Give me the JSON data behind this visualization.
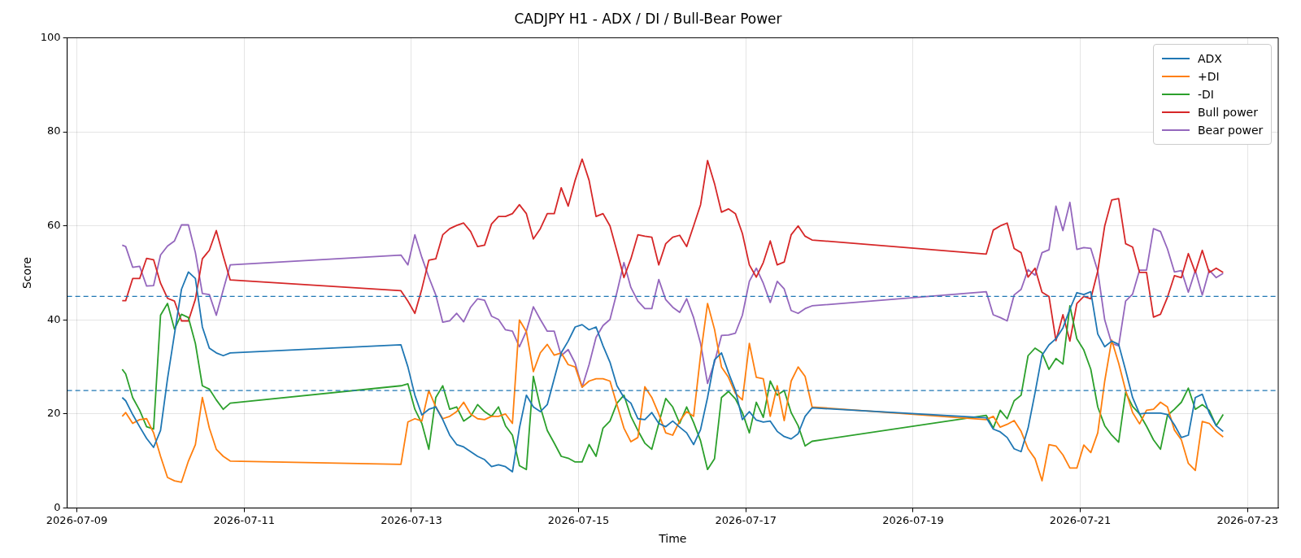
{
  "chart_data": {
    "type": "line",
    "title": "CADJPY H1 - ADX / DI / Bull-Bear Power",
    "xlabel": "Time",
    "ylabel": "Score",
    "x": [
      "2026-07-09T13:00",
      "2026-07-09T14:00",
      "2026-07-09T16:00",
      "2026-07-09T18:00",
      "2026-07-09T20:00",
      "2026-07-09T22:00",
      "2026-07-10T00:00",
      "2026-07-10T02:00",
      "2026-07-10T04:00",
      "2026-07-10T06:00",
      "2026-07-10T08:00",
      "2026-07-10T10:00",
      "2026-07-10T12:00",
      "2026-07-10T14:00",
      "2026-07-10T16:00",
      "2026-07-10T18:00",
      "2026-07-10T20:00",
      "2026-07-12T21:00",
      "2026-07-12T23:00",
      "2026-07-13T01:00",
      "2026-07-13T03:00",
      "2026-07-13T05:00",
      "2026-07-13T07:00",
      "2026-07-13T09:00",
      "2026-07-13T11:00",
      "2026-07-13T13:00",
      "2026-07-13T15:00",
      "2026-07-13T17:00",
      "2026-07-13T19:00",
      "2026-07-13T21:00",
      "2026-07-13T23:00",
      "2026-07-14T01:00",
      "2026-07-14T03:00",
      "2026-07-14T05:00",
      "2026-07-14T07:00",
      "2026-07-14T09:00",
      "2026-07-14T11:00",
      "2026-07-14T13:00",
      "2026-07-14T15:00",
      "2026-07-14T17:00",
      "2026-07-14T19:00",
      "2026-07-14T21:00",
      "2026-07-14T23:00",
      "2026-07-15T01:00",
      "2026-07-15T03:00",
      "2026-07-15T05:00",
      "2026-07-15T07:00",
      "2026-07-15T09:00",
      "2026-07-15T11:00",
      "2026-07-15T13:00",
      "2026-07-15T15:00",
      "2026-07-15T17:00",
      "2026-07-15T19:00",
      "2026-07-15T21:00",
      "2026-07-15T23:00",
      "2026-07-16T01:00",
      "2026-07-16T03:00",
      "2026-07-16T05:00",
      "2026-07-16T07:00",
      "2026-07-16T09:00",
      "2026-07-16T11:00",
      "2026-07-16T13:00",
      "2026-07-16T15:00",
      "2026-07-16T17:00",
      "2026-07-16T19:00",
      "2026-07-16T21:00",
      "2026-07-16T23:00",
      "2026-07-17T01:00",
      "2026-07-17T03:00",
      "2026-07-17T05:00",
      "2026-07-17T07:00",
      "2026-07-17T09:00",
      "2026-07-17T11:00",
      "2026-07-17T13:00",
      "2026-07-17T15:00",
      "2026-07-17T17:00",
      "2026-07-17T19:00",
      "2026-07-19T21:00",
      "2026-07-19T23:00",
      "2026-07-20T01:00",
      "2026-07-20T03:00",
      "2026-07-20T05:00",
      "2026-07-20T07:00",
      "2026-07-20T09:00",
      "2026-07-20T11:00",
      "2026-07-20T13:00",
      "2026-07-20T15:00",
      "2026-07-20T17:00",
      "2026-07-20T19:00",
      "2026-07-20T21:00",
      "2026-07-20T23:00",
      "2026-07-21T01:00",
      "2026-07-21T03:00",
      "2026-07-21T05:00",
      "2026-07-21T07:00",
      "2026-07-21T09:00",
      "2026-07-21T11:00",
      "2026-07-21T13:00",
      "2026-07-21T15:00",
      "2026-07-21T17:00",
      "2026-07-21T19:00",
      "2026-07-21T21:00",
      "2026-07-21T23:00",
      "2026-07-22T01:00",
      "2026-07-22T03:00",
      "2026-07-22T05:00",
      "2026-07-22T07:00",
      "2026-07-22T09:00",
      "2026-07-22T11:00",
      "2026-07-22T13:00",
      "2026-07-22T15:00",
      "2026-07-22T17:00"
    ],
    "series": [
      {
        "name": "ADX",
        "color": "#1f77b4",
        "values": [
          23.5,
          22.8,
          19.9,
          17.3,
          14.8,
          12.9,
          16.5,
          27.5,
          37,
          46.5,
          50.2,
          48.8,
          38.5,
          34,
          33,
          32.4,
          33,
          34.7,
          30,
          24,
          19.8,
          21,
          21.5,
          18.8,
          15.5,
          13.5,
          13,
          12,
          11,
          10.3,
          8.8,
          9.2,
          8.8,
          7.7,
          17,
          24,
          21.5,
          20.5,
          22,
          27.5,
          33,
          35.5,
          38.5,
          39,
          37.9,
          38.5,
          34.5,
          31,
          26,
          23.5,
          22.3,
          19,
          18.8,
          20.3,
          18,
          17.3,
          18.5,
          17.2,
          16,
          13.5,
          16.7,
          23.5,
          31.5,
          33,
          28.8,
          25,
          18.8,
          20.5,
          18.7,
          18.3,
          18.5,
          16.3,
          15.2,
          14.7,
          15.8,
          19.5,
          21.3,
          19.2,
          16.8,
          16.2,
          15,
          12.6,
          12,
          17,
          24.5,
          32.5,
          34.7,
          36,
          38.3,
          42.3,
          45.8,
          45.4,
          46,
          37,
          34.3,
          35.5,
          34.8,
          29.3,
          23.5,
          20,
          20.2,
          20.2,
          20.2,
          19.9,
          17.7,
          15,
          15.5,
          23.5,
          24.2,
          20.2,
          17.5,
          16.3
        ]
      },
      {
        "name": "+DI",
        "color": "#ff7f0e",
        "values": [
          19.5,
          20.3,
          18,
          18.8,
          19,
          16,
          11,
          6.5,
          5.8,
          5.5,
          10,
          13.5,
          23.5,
          17,
          12.5,
          11,
          10,
          9.3,
          18.3,
          19,
          18.5,
          25,
          21.5,
          19,
          19.5,
          20.5,
          22.5,
          20,
          19,
          18.8,
          19.5,
          19.5,
          20,
          18,
          40,
          37.5,
          29,
          33,
          34.8,
          32.5,
          33,
          30.5,
          30,
          25.7,
          27,
          27.5,
          27.5,
          27,
          22,
          17,
          14.1,
          15,
          25.8,
          23.5,
          20,
          16,
          15.5,
          18.5,
          20.5,
          19.5,
          32.5,
          43.5,
          38,
          30,
          27.8,
          24.4,
          23,
          35,
          27.8,
          27.5,
          19.5,
          26,
          18.6,
          27,
          30,
          28,
          21.5,
          18.8,
          19.5,
          17.2,
          17.8,
          18.6,
          16.3,
          12.6,
          10.5,
          5.8,
          13.5,
          13.2,
          11.3,
          8.5,
          8.5,
          13.4,
          11.8,
          16,
          27,
          35.7,
          30.8,
          25,
          20.3,
          17.9,
          20.8,
          21,
          22.5,
          21.5,
          16.6,
          14.5,
          9.5,
          8,
          18.4,
          18,
          16.3,
          15.1
        ]
      },
      {
        "name": "-DI",
        "color": "#2ca02c",
        "values": [
          29.5,
          28.5,
          23.5,
          20.8,
          17.3,
          16.8,
          41,
          43.5,
          38,
          41.2,
          40.5,
          35,
          26,
          25.3,
          23,
          21,
          22.3,
          26,
          26.4,
          21,
          18,
          12.5,
          23.5,
          26,
          21,
          21.5,
          18.5,
          19.5,
          22,
          20.5,
          19.5,
          21.5,
          17.5,
          15.5,
          9,
          8.2,
          28,
          21.5,
          16.5,
          13.8,
          11,
          10.6,
          9.8,
          9.8,
          13.5,
          11,
          17,
          18.5,
          22.3,
          24,
          19.5,
          16.5,
          13.8,
          12.5,
          18,
          23.3,
          21.5,
          18,
          21.5,
          18.2,
          14.3,
          8.2,
          10.5,
          23.5,
          24.8,
          23.2,
          20.3,
          16,
          22.5,
          19.3,
          27,
          24,
          25,
          20.3,
          17.5,
          13.2,
          14.2,
          19.7,
          17,
          20.8,
          19,
          22.8,
          24,
          32.4,
          34,
          33,
          29.5,
          31.8,
          30.6,
          43,
          36,
          33.6,
          29.5,
          21.5,
          17.5,
          15.5,
          14,
          24.6,
          21.6,
          20,
          17.4,
          14.5,
          12.5,
          19.7,
          21,
          22.5,
          25.5,
          21,
          22,
          20.8,
          17.5,
          19.9
        ]
      },
      {
        "name": "Bull power",
        "color": "#d62728",
        "values": [
          44.1,
          44.1,
          48.8,
          48.8,
          53.1,
          52.8,
          47.8,
          44.6,
          44,
          39.8,
          39.8,
          44.4,
          53,
          54.8,
          59,
          53.6,
          48.5,
          46.2,
          44,
          41.4,
          46.6,
          52.7,
          53,
          58.1,
          59.4,
          60.1,
          60.6,
          58.8,
          55.6,
          55.9,
          60.4,
          62,
          62,
          62.6,
          64.5,
          62.6,
          57.2,
          59.4,
          62.6,
          62.6,
          68.1,
          64.2,
          69.7,
          74.2,
          69.7,
          62,
          62.6,
          60,
          54.6,
          49,
          53,
          58.1,
          57.8,
          57.6,
          51.7,
          56.2,
          57.6,
          58,
          55.6,
          60,
          64.5,
          73.9,
          69,
          62.9,
          63.6,
          62.6,
          58.4,
          51.7,
          49.1,
          52.2,
          56.8,
          51.7,
          52.3,
          58.1,
          60,
          57.8,
          57,
          54,
          59.1,
          60,
          60.6,
          55.2,
          54.3,
          49.1,
          51,
          45.9,
          45,
          35.6,
          41.1,
          35.5,
          43.5,
          45,
          44.5,
          50.4,
          60,
          65.5,
          65.8,
          56.2,
          55.5,
          50.1,
          50.1,
          40.6,
          41.2,
          44.8,
          49.4,
          49,
          54.1,
          50.1,
          54.8,
          50.1,
          51,
          50.1
        ]
      },
      {
        "name": "Bear power",
        "color": "#9467bd",
        "values": [
          55.9,
          55.6,
          51.2,
          51.4,
          47.2,
          47.3,
          53.8,
          55.7,
          56.8,
          60.2,
          60.2,
          54.3,
          45.6,
          45.4,
          41,
          46.4,
          51.7,
          53.8,
          51.7,
          58.1,
          53.3,
          49.1,
          45.3,
          39.5,
          39.8,
          41.4,
          39.6,
          42.7,
          44.5,
          44.2,
          40.8,
          40.1,
          37.9,
          37.6,
          34.3,
          37.6,
          42.8,
          40.1,
          37.6,
          37.6,
          32.4,
          33.7,
          30.8,
          25.7,
          30.5,
          36.3,
          38.8,
          40.1,
          45.9,
          52.2,
          46.9,
          44,
          42.4,
          42.4,
          48.6,
          44.3,
          42.7,
          41.6,
          44.5,
          40.5,
          35,
          26.5,
          31,
          36.7,
          36.8,
          37.2,
          41,
          48.2,
          51,
          47.8,
          43.7,
          48.2,
          46.6,
          42,
          41.4,
          42.4,
          43,
          46,
          41.1,
          40.5,
          39.8,
          45.3,
          46.5,
          50.7,
          49.5,
          54.3,
          54.9,
          64.2,
          59,
          65,
          55,
          55.4,
          55.2,
          50.4,
          40,
          35,
          34.5,
          44,
          45.5,
          50.6,
          50.6,
          59.4,
          58.8,
          55.1,
          50.2,
          50.5,
          45.9,
          50.5,
          45.3,
          50.6,
          49,
          49.9
        ]
      }
    ],
    "xlim": [
      "2026-07-08T21:12",
      "2026-07-23T08:48"
    ],
    "xticks": [
      "2026-07-09",
      "2026-07-11",
      "2026-07-13",
      "2026-07-15",
      "2026-07-17",
      "2026-07-19",
      "2026-07-21",
      "2026-07-23"
    ],
    "ylim": [
      0,
      100
    ],
    "yticks": [
      0,
      20,
      40,
      60,
      80,
      100
    ],
    "ref_lines": [
      {
        "axis": "y",
        "value": 45,
        "color": "#1f77b4",
        "line_style": "dashed"
      },
      {
        "axis": "y",
        "value": 25,
        "color": "#1f77b4",
        "line_style": "dashed"
      }
    ],
    "grid": true,
    "legend": "top right"
  }
}
